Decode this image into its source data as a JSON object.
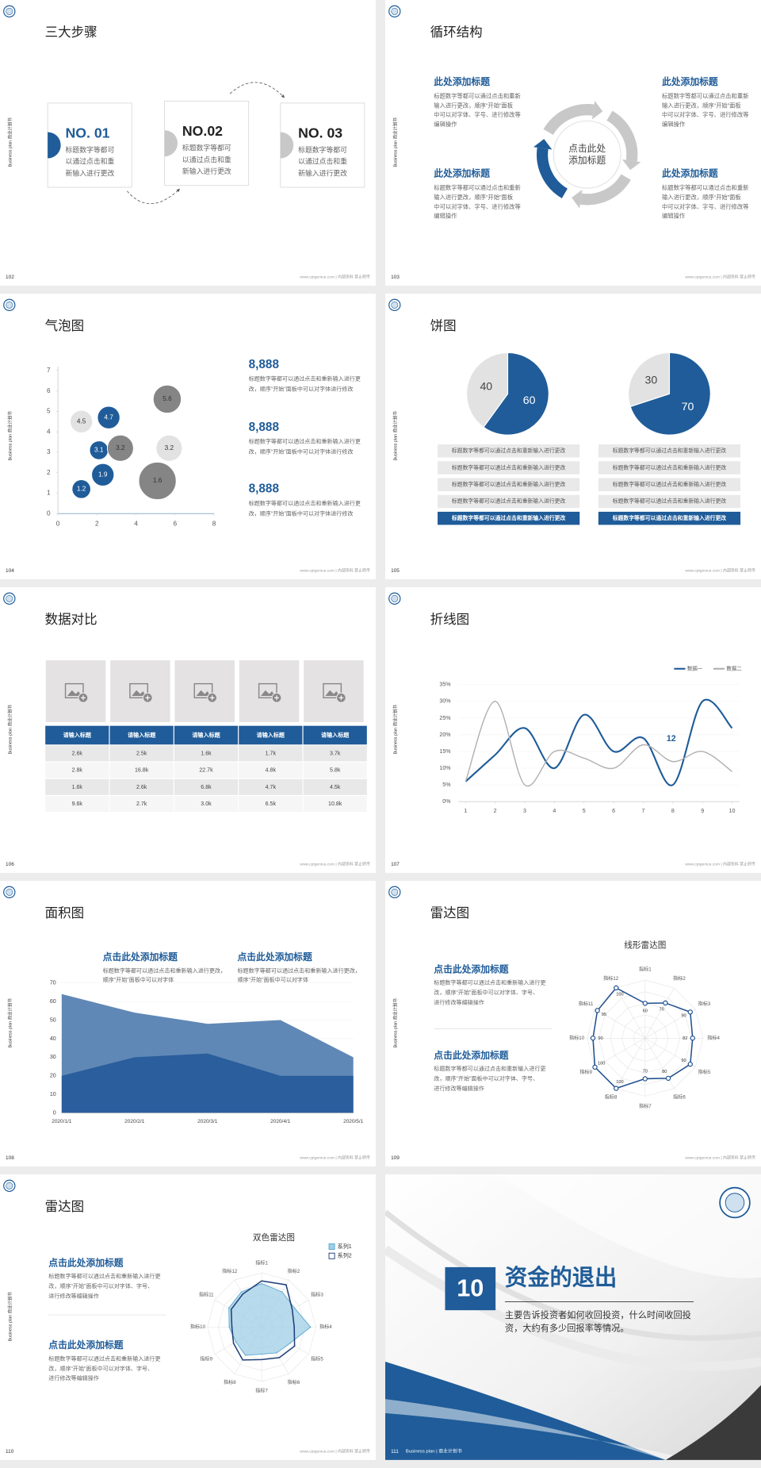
{
  "common": {
    "side_label": "Business plan 商业计划书",
    "footer": "www.cptgenius.com | 内部资料 禁止转传"
  },
  "slides": [
    {
      "page": "102",
      "title": "三大步骤",
      "steps": [
        {
          "label": "NO. 01",
          "text": "标题数字等都可以通过点击和重新输入进行更改"
        },
        {
          "label": "NO.02",
          "text": "标题数字等都可以通过点击和重新输入进行更改"
        },
        {
          "label": "NO. 03",
          "text": "标题数字等都可以通过点击和重新输入进行更改"
        }
      ]
    },
    {
      "page": "103",
      "title": "循环结构",
      "center": [
        "点击此处",
        "添加标题"
      ],
      "blocks": [
        {
          "heading": "此处添加标题",
          "text": "标题数字等都可以通过点击和重新输入进行更改，顺序“开始”面板中可以对字体、字号、进行修改等编辑操作"
        },
        {
          "heading": "此处添加标题",
          "text": "标题数字等都可以通过点击和重新输入进行更改，顺序“开始”面板中可以对字体、字号、进行修改等编辑操作"
        },
        {
          "heading": "此处添加标题",
          "text": "标题数字等都可以通过点击和重新输入进行更改，顺序“开始”面板中可以对字体、字号、进行修改等编辑操作"
        },
        {
          "heading": "此处添加标题",
          "text": "标题数字等都可以通过点击和重新输入进行更改，顺序“开始”面板中可以对字体、字号、进行修改等编辑操作"
        }
      ]
    },
    {
      "page": "104",
      "title": "气泡图",
      "blocks": [
        {
          "heading": "8,888",
          "text": "标题数字等都可以通过点击和重新输入进行更改，顺序“开始”面板中可以对字体进行修改"
        },
        {
          "heading": "8,888",
          "text": "标题数字等都可以通过点击和重新输入进行更改，顺序“开始”面板中可以对字体进行修改"
        },
        {
          "heading": "8,888",
          "text": "标题数字等都可以通过点击和重新输入进行更改，顺序“开始”面板中可以对字体进行修改"
        }
      ]
    },
    {
      "page": "105",
      "title": "饼图",
      "lists": [
        [
          "标题数字等都可以通过点击和重新输入进行更改",
          "标题数字等都可以通过点击和重新输入进行更改",
          "标题数字等都可以通过点击和重新输入进行更改",
          "标题数字等都可以通过点击和重新输入进行更改",
          "标题数字等都可以通过点击和重新输入进行更改"
        ],
        [
          "标题数字等都可以通过点击和重新输入进行更改",
          "标题数字等都可以通过点击和重新输入进行更改",
          "标题数字等都可以通过点击和重新输入进行更改",
          "标题数字等都可以通过点击和重新输入进行更改",
          "标题数字等都可以通过点击和重新输入进行更改"
        ]
      ]
    },
    {
      "page": "106",
      "title": "数据对比",
      "table": {
        "header": [
          "请输入标题",
          "请输入标题",
          "请输入标题",
          "请输入标题",
          "请输入标题"
        ],
        "rows": [
          [
            "2.6k",
            "2.5k",
            "1.6k",
            "1.7k",
            "3.7k"
          ],
          [
            "2.8k",
            "16.8k",
            "22.7k",
            "4.8k",
            "5.8k"
          ],
          [
            "1.6k",
            "2.6k",
            "6.8k",
            "4.7k",
            "4.5k"
          ],
          [
            "9.6k",
            "2.7k",
            "3.0k",
            "6.5k",
            "10.8k"
          ]
        ]
      }
    },
    {
      "page": "107",
      "title": "折线图"
    },
    {
      "page": "108",
      "title": "面积图",
      "blocks": [
        {
          "heading": "点击此处添加标题",
          "text": "标题数字等都可以通过点击和重新输入进行更改，顺序“开始”面板中可以对字体"
        },
        {
          "heading": "点击此处添加标题",
          "text": "标题数字等都可以通过点击和重新输入进行更改，顺序“开始”面板中可以对字体"
        }
      ]
    },
    {
      "page": "109",
      "title": "雷达图",
      "blocks": [
        {
          "heading": "点击此处添加标题",
          "text": "标题数字等都可以通过点击和重新输入进行更改，顺序“开始”面板中可以对字体、字号、进行修改等编辑操作"
        },
        {
          "heading": "点击此处添加标题",
          "text": "标题数字等都可以通过点击和重新输入进行更改，顺序“开始”面板中可以对字体、字号、进行修改等编辑操作"
        }
      ]
    },
    {
      "page": "110",
      "title": "雷达图",
      "blocks": [
        {
          "heading": "点击此处添加标题",
          "text": "标题数字等都可以通过点击和重新输入进行更改，顺序“开始”面板中可以对字体、字号、进行修改等编辑操作"
        },
        {
          "heading": "点击此处添加标题",
          "text": "标题数字等都可以通过点击和重新输入进行更改，顺序“开始”面板中可以对字体、字号、进行修改等编辑操作"
        }
      ]
    },
    {
      "page": "111",
      "number": "10",
      "title": "资金的退出",
      "text": "主要告诉投资者如何收回投资，什么时间收回投资，大约有多少回报率等情况。",
      "footer": "Business plan | 商业计划书"
    }
  ],
  "chart_data": [
    {
      "type": "scatter",
      "xlim": [
        0,
        8
      ],
      "xticks": [
        0,
        2,
        4,
        6,
        8
      ],
      "ylim": [
        0,
        7
      ],
      "yticks": [
        0,
        1,
        2,
        3,
        4,
        5,
        6,
        7
      ],
      "series": [
        {
          "color": "#1f5c99",
          "x": [
            1.2,
            2.3,
            2.1,
            2.6
          ],
          "values": [
            1.2,
            1.9,
            3.1,
            4.7
          ],
          "sizes": [
            10,
            12,
            10,
            12
          ]
        },
        {
          "color": "#e2e2e2",
          "x": [
            1.2,
            5.7
          ],
          "values": [
            4.5,
            3.2
          ],
          "sizes": [
            12,
            14
          ]
        },
        {
          "color": "#858585",
          "x": [
            3.2,
            5.6,
            5.1
          ],
          "values": [
            3.2,
            5.6,
            1.6
          ],
          "sizes": [
            14,
            15,
            20
          ]
        }
      ]
    },
    {
      "type": "pie",
      "values": [
        60,
        40
      ],
      "colors": [
        "#1f5c99",
        "#e2e2e2"
      ]
    },
    {
      "type": "pie",
      "values": [
        70,
        30
      ],
      "colors": [
        "#1f5c99",
        "#e2e2e2"
      ]
    },
    {
      "type": "line",
      "x": [
        1,
        2,
        3,
        4,
        5,
        6,
        7,
        8,
        9,
        10
      ],
      "xlim": [
        0.75,
        10.25
      ],
      "xticks": [
        1,
        2,
        3,
        4,
        5,
        6,
        7,
        8,
        9,
        10
      ],
      "ylim": [
        0,
        35
      ],
      "yticks": [
        {
          "value": 0,
          "label": "0%"
        },
        {
          "value": 5,
          "label": "5%"
        },
        {
          "value": 10,
          "label": "10%"
        },
        {
          "value": 15,
          "label": "15%"
        },
        {
          "value": 20,
          "label": "20%"
        },
        {
          "value": 25,
          "label": "25%"
        },
        {
          "value": 30,
          "label": "30%"
        },
        {
          "value": 35,
          "label": "35%"
        }
      ],
      "legend": "upper right",
      "annotation": "12",
      "series": [
        {
          "name": "数据一",
          "color": "#1f5c99",
          "values": [
            6,
            14,
            22,
            10,
            26,
            15,
            19,
            5,
            30,
            22
          ]
        },
        {
          "name": "数据二",
          "color": "#b0b0b0",
          "values": [
            6,
            30,
            5,
            15,
            13,
            10,
            17,
            12,
            15,
            9
          ]
        }
      ]
    },
    {
      "type": "area",
      "categories": [
        "2020/1/1",
        "2020/2/1",
        "2020/3/1",
        "2020/4/1",
        "2020/5/1"
      ],
      "ylim": [
        0,
        70
      ],
      "yticks": [
        0,
        10,
        20,
        30,
        40,
        50,
        60,
        70
      ],
      "series": [
        {
          "color": "#6088b6",
          "values": [
            64,
            54,
            48,
            50,
            30
          ]
        },
        {
          "color": "#2a5e9c",
          "values": [
            20,
            30,
            32,
            20,
            20
          ]
        }
      ]
    },
    {
      "type": "radar",
      "title": "线形雷达图",
      "categories": [
        "指标1",
        "指标2",
        "指标3",
        "指标4",
        "指标5",
        "指标6",
        "指标7",
        "指标8",
        "指标9",
        "指标10",
        "指标11",
        "指标12"
      ],
      "rlim": [
        0,
        100
      ],
      "data_labels": true,
      "series": [
        {
          "color": "#1f4f8f",
          "values": [
            60,
            70,
            90,
            82,
            90,
            80,
            70,
            100,
            100,
            90,
            95,
            100
          ]
        }
      ]
    },
    {
      "type": "radar",
      "title": "双色雷达图",
      "categories": [
        "指标1",
        "指标2",
        "指标3",
        "指标4",
        "指标5",
        "指标6",
        "指标7",
        "指标8",
        "指标9",
        "指标10",
        "指标11",
        "指标12"
      ],
      "rlim": [
        0,
        100
      ],
      "legend": "upper right",
      "series": [
        {
          "name": "系列1",
          "color": "#9fcfe6",
          "values": [
            80,
            75,
            70,
            90,
            60,
            55,
            50,
            60,
            55,
            60,
            70,
            75
          ]
        },
        {
          "name": "系列2",
          "color": "#1f3f7a",
          "values": [
            85,
            90,
            65,
            60,
            70,
            65,
            60,
            70,
            60,
            55,
            65,
            70
          ]
        }
      ]
    }
  ]
}
